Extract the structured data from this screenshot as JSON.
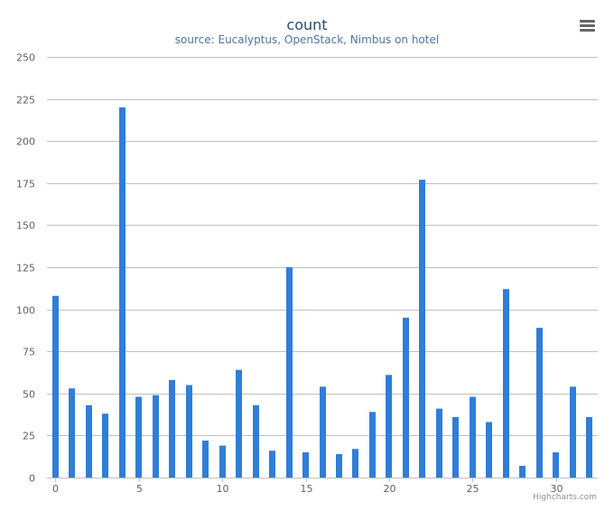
{
  "chart_data": {
    "type": "bar",
    "title": "count",
    "subtitle": "source: Eucalyptus, OpenStack, Nimbus on hotel",
    "xlabel": "",
    "ylabel": "",
    "x_tick_labels": [
      "0",
      "5",
      "10",
      "15",
      "20",
      "25",
      "30"
    ],
    "y_tick_labels": [
      "0",
      "25",
      "50",
      "75",
      "100",
      "125",
      "150",
      "175",
      "200",
      "225",
      "250"
    ],
    "ylim": [
      0,
      250
    ],
    "xlim": [
      -0.5,
      32.5
    ],
    "grid": true,
    "legend": "none",
    "credits": "Highcharts.com",
    "series": [
      {
        "color": "#2f7ed8",
        "x": [
          0,
          1,
          2,
          3,
          4,
          5,
          6,
          7,
          8,
          9,
          10,
          11,
          12,
          13,
          14,
          15,
          16,
          17,
          18,
          19,
          20,
          21,
          22,
          23,
          24,
          25,
          26,
          27,
          28,
          29,
          30,
          31,
          32
        ],
        "values": [
          108,
          53,
          43,
          38,
          220,
          48,
          49,
          58,
          55,
          22,
          19,
          64,
          43,
          16,
          125,
          15,
          54,
          14,
          17,
          39,
          61,
          95,
          177,
          41,
          36,
          48,
          33,
          112,
          7,
          89,
          15,
          54,
          36
        ]
      }
    ]
  },
  "menu": {
    "icon": "hamburger-menu-icon"
  },
  "colors": {
    "title": "#274b6d",
    "subtitle": "#4d759e",
    "grid": "#c0c0c0",
    "axis_text": "#606060",
    "credits": "#909090",
    "bar": "#2f7ed8",
    "menu_icon": "#666666"
  }
}
